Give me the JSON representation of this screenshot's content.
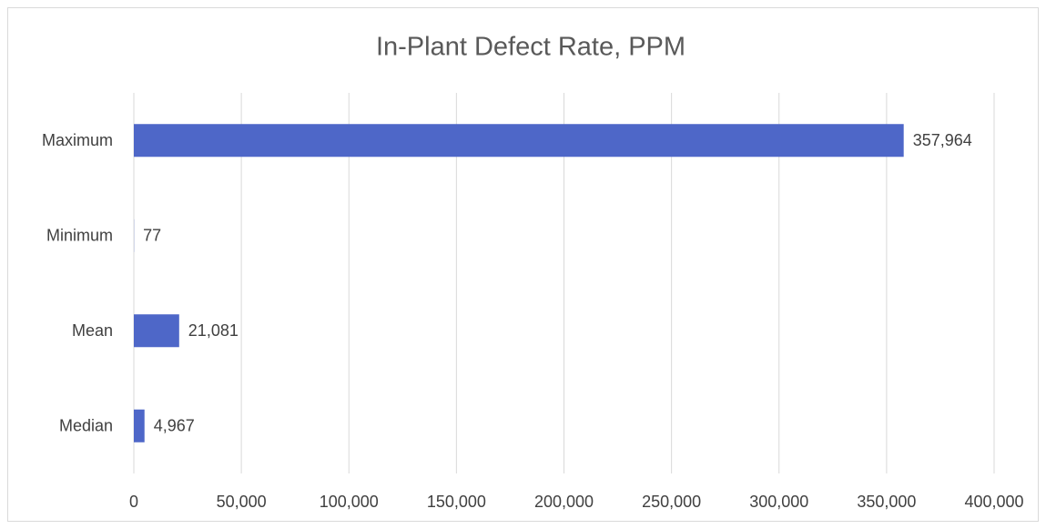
{
  "chart_data": {
    "type": "bar",
    "orientation": "horizontal",
    "title": "In-Plant Defect Rate, PPM",
    "categories": [
      "Maximum",
      "Minimum",
      "Mean",
      "Median"
    ],
    "values": [
      357964,
      77,
      21081,
      4967
    ],
    "value_labels": [
      "357,964",
      "77",
      "21,081",
      "4,967"
    ],
    "color": "#4e67c8",
    "xlim": [
      0,
      400000
    ],
    "xticks": [
      0,
      {
        "value": 50000,
        "label": "50,000"
      },
      {
        "value": 100000,
        "label": "100,000"
      },
      {
        "value": 150000,
        "label": "150,000"
      },
      {
        "value": 200000,
        "label": "200,000"
      },
      {
        "value": 250000,
        "label": "250,000"
      },
      {
        "value": 300000,
        "label": "300,000"
      },
      {
        "value": 350000,
        "label": "350,000"
      },
      {
        "value": 400000,
        "label": "400,000"
      }
    ],
    "grid": true
  }
}
